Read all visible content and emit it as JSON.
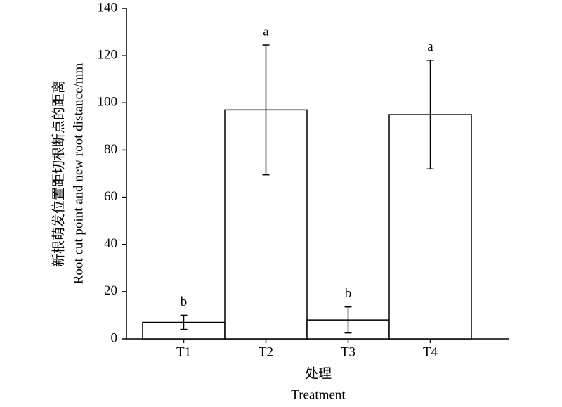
{
  "chart_data": {
    "type": "bar",
    "categories": [
      "T1",
      "T2",
      "T3",
      "T4"
    ],
    "values": [
      7,
      97,
      8,
      95
    ],
    "errors": [
      3,
      27.5,
      5.5,
      23
    ],
    "letters": [
      "b",
      "a",
      "b",
      "a"
    ],
    "color": "#ffffff",
    "ylim": [
      0,
      140
    ],
    "yticks": [
      0,
      20,
      40,
      60,
      80,
      100,
      120,
      140
    ],
    "grid": false,
    "x_label": [
      "处理",
      "Treatment"
    ],
    "y_label": [
      "新根萌发位置距切根断点的距离",
      "Root cut point and new root distance/mm"
    ]
  }
}
